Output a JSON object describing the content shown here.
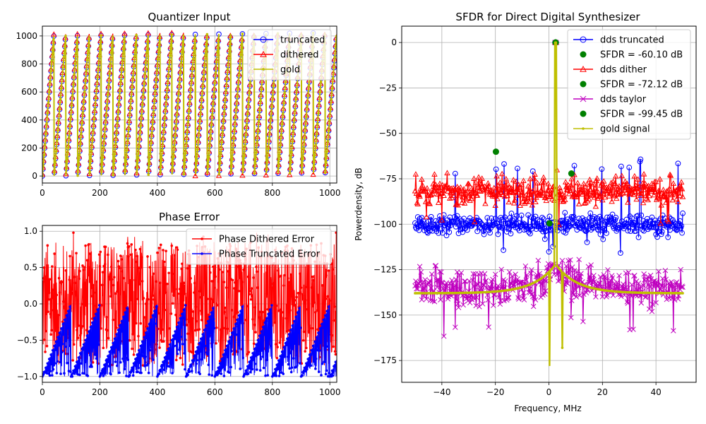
{
  "figure": {
    "background": "#ffffff"
  },
  "chart_data": [
    {
      "id": "quantizer",
      "type": "line",
      "title": "Quantizer Input",
      "xlabel": "",
      "ylabel": "",
      "xlim": [
        0,
        1024
      ],
      "ylim": [
        -50,
        1070
      ],
      "xticks": [
        0,
        200,
        400,
        600,
        800,
        1000
      ],
      "xtick_labels": [
        "0",
        "200",
        "400",
        "600",
        "800",
        "1000"
      ],
      "yticks": [
        0,
        200,
        400,
        600,
        800,
        1000
      ],
      "ytick_labels": [
        "0",
        "200",
        "400",
        "600",
        "800",
        "1000"
      ],
      "grid": true,
      "legend_position": "top-right",
      "sawtooth": {
        "period": 40.96,
        "min": 0,
        "max": 1023,
        "samples": 1024
      },
      "series": [
        {
          "name": "truncated",
          "color": "#0000ff",
          "marker": "circle-open",
          "offset": 0
        },
        {
          "name": "dithered",
          "color": "#ff0000",
          "marker": "triangle-open",
          "offset": 0.5
        },
        {
          "name": "gold",
          "color": "#bfbf00",
          "marker": "dot",
          "offset": 0
        }
      ]
    },
    {
      "id": "phase_error",
      "type": "line",
      "title": "Phase Error",
      "xlabel": "",
      "ylabel": "",
      "xlim": [
        0,
        1024
      ],
      "ylim": [
        -1.08,
        1.08
      ],
      "xticks": [
        0,
        200,
        400,
        600,
        800,
        1000
      ],
      "xtick_labels": [
        "0",
        "200",
        "400",
        "600",
        "800",
        "1000"
      ],
      "yticks": [
        -1.0,
        -0.5,
        0.0,
        0.5,
        1.0
      ],
      "ytick_labels": [
        "−1.0",
        "−0.5",
        "0.0",
        "0.5",
        "1.0"
      ],
      "grid": true,
      "legend_position": "top-right",
      "series": [
        {
          "name": "Phase Dithered  Error",
          "color": "#ff0000",
          "marker": "dot",
          "range": [
            -1.0,
            1.0
          ]
        },
        {
          "name": "Phase Truncated Error",
          "color": "#0000ff",
          "marker": "dot",
          "range": [
            -1.0,
            0.0
          ],
          "ramp_period": 100
        }
      ]
    },
    {
      "id": "sfdr",
      "type": "line",
      "title": "SFDR for Direct Digital Synthesizer",
      "xlabel": "Frequency, MHz",
      "ylabel": "Powerdensity, dB",
      "xlim": [
        -55,
        55
      ],
      "ylim": [
        -187,
        9
      ],
      "xticks": [
        -40,
        -20,
        0,
        20,
        40
      ],
      "xtick_labels": [
        "−40",
        "−20",
        "0",
        "20",
        "40"
      ],
      "yticks": [
        0,
        -25,
        -50,
        -75,
        -100,
        -125,
        -150,
        -175
      ],
      "ytick_labels": [
        "0",
        "−25",
        "−50",
        "−75",
        "−100",
        "−125",
        "−150",
        "−175"
      ],
      "grid": true,
      "legend_position": "top-right",
      "freq_range": [
        -50,
        50
      ],
      "carrier_freq": 2.5,
      "series": [
        {
          "name": "dds truncated",
          "color": "#0000ff",
          "marker": "circle-open",
          "floor": -100,
          "spread": 4,
          "spur_level": -68
        },
        {
          "name": "SFDR = -60.10 dB",
          "color": "#008000",
          "marker": "dot-marker",
          "points": [
            [
              -19.8,
              -60.1
            ],
            [
              2.5,
              0
            ]
          ]
        },
        {
          "name": "dds dither",
          "color": "#ff0000",
          "marker": "triangle-open",
          "floor": -82,
          "spread": 5,
          "spur_level": -74
        },
        {
          "name": "SFDR = -72.12 dB",
          "color": "#008000",
          "marker": "dot-marker",
          "points": [
            [
              8.4,
              -72.1
            ],
            [
              2.5,
              0
            ]
          ]
        },
        {
          "name": "dds taylor",
          "color": "#bf00bf",
          "marker": "x",
          "floor": -135,
          "spread": 7,
          "spur_level": -125
        },
        {
          "name": "SFDR = -99.45 dB",
          "color": "#008000",
          "marker": "dot-marker",
          "points": [
            [
              0.2,
              -99.5
            ],
            [
              2.5,
              0
            ]
          ]
        },
        {
          "name": "gold signal",
          "color": "#bfbf00",
          "marker": "dot",
          "floor": -138,
          "peak_skirt": -122
        }
      ]
    }
  ]
}
